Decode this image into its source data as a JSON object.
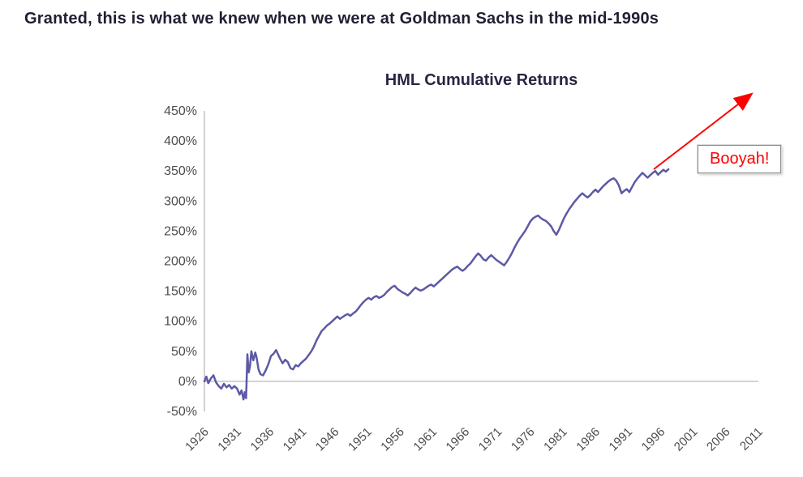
{
  "header": {
    "title": "Granted, this is what we knew when we were at Goldman Sachs in the mid-1990s"
  },
  "chart_data": {
    "type": "line",
    "title": "HML Cumulative Returns",
    "xlabel": "",
    "ylabel": "",
    "xlim": [
      1926,
      2011
    ],
    "ylim": [
      -50,
      450
    ],
    "grid": "zero-line-only",
    "legend": "none",
    "line_color": "#5d59a5",
    "axis_color": "#a6a6a6",
    "tick_label_color": "#4d4d4d",
    "annotation": {
      "text": "Booyah!",
      "color": "#ff0000"
    },
    "y_ticks": [
      {
        "value": 450,
        "label": "450%"
      },
      {
        "value": 400,
        "label": "400%"
      },
      {
        "value": 350,
        "label": "350%"
      },
      {
        "value": 300,
        "label": "300%"
      },
      {
        "value": 250,
        "label": "250%"
      },
      {
        "value": 200,
        "label": "200%"
      },
      {
        "value": 150,
        "label": "150%"
      },
      {
        "value": 100,
        "label": "100%"
      },
      {
        "value": 50,
        "label": "50%"
      },
      {
        "value": 0,
        "label": "0%"
      },
      {
        "value": -50,
        "label": "-50%"
      }
    ],
    "x_ticks": [
      {
        "value": 1926,
        "label": "1926"
      },
      {
        "value": 1931,
        "label": "1931"
      },
      {
        "value": 1936,
        "label": "1936"
      },
      {
        "value": 1941,
        "label": "1941"
      },
      {
        "value": 1946,
        "label": "1946"
      },
      {
        "value": 1951,
        "label": "1951"
      },
      {
        "value": 1956,
        "label": "1956"
      },
      {
        "value": 1961,
        "label": "1961"
      },
      {
        "value": 1966,
        "label": "1966"
      },
      {
        "value": 1971,
        "label": "1971"
      },
      {
        "value": 1976,
        "label": "1976"
      },
      {
        "value": 1981,
        "label": "1981"
      },
      {
        "value": 1986,
        "label": "1986"
      },
      {
        "value": 1991,
        "label": "1991"
      },
      {
        "value": 1996,
        "label": "1996"
      },
      {
        "value": 2001,
        "label": "2001"
      },
      {
        "value": 2006,
        "label": "2006"
      },
      {
        "value": 2011,
        "label": "2011"
      }
    ],
    "series": [
      {
        "name": "HML cumulative return (%)",
        "points": [
          [
            1926,
            0
          ],
          [
            1926.3,
            8
          ],
          [
            1926.6,
            -3
          ],
          [
            1927,
            5
          ],
          [
            1927.4,
            10
          ],
          [
            1927.8,
            -2
          ],
          [
            1928.2,
            -8
          ],
          [
            1928.6,
            -12
          ],
          [
            1929,
            -4
          ],
          [
            1929.4,
            -10
          ],
          [
            1929.8,
            -6
          ],
          [
            1930.2,
            -12
          ],
          [
            1930.6,
            -8
          ],
          [
            1931,
            -12
          ],
          [
            1931.4,
            -22
          ],
          [
            1931.7,
            -15
          ],
          [
            1932,
            -30
          ],
          [
            1932.2,
            -18
          ],
          [
            1932.4,
            -28
          ],
          [
            1932.6,
            45
          ],
          [
            1932.8,
            15
          ],
          [
            1933,
            25
          ],
          [
            1933.2,
            50
          ],
          [
            1933.5,
            35
          ],
          [
            1933.8,
            48
          ],
          [
            1934,
            40
          ],
          [
            1934.3,
            20
          ],
          [
            1934.6,
            12
          ],
          [
            1935,
            10
          ],
          [
            1935.4,
            18
          ],
          [
            1935.8,
            28
          ],
          [
            1936.2,
            42
          ],
          [
            1936.6,
            46
          ],
          [
            1937,
            52
          ],
          [
            1937.3,
            45
          ],
          [
            1937.6,
            38
          ],
          [
            1938,
            30
          ],
          [
            1938.4,
            36
          ],
          [
            1938.8,
            32
          ],
          [
            1939.2,
            22
          ],
          [
            1939.6,
            20
          ],
          [
            1940,
            27
          ],
          [
            1940.4,
            25
          ],
          [
            1940.8,
            30
          ],
          [
            1941.2,
            34
          ],
          [
            1941.6,
            38
          ],
          [
            1942,
            44
          ],
          [
            1942.4,
            50
          ],
          [
            1942.8,
            58
          ],
          [
            1943.2,
            68
          ],
          [
            1943.6,
            76
          ],
          [
            1944,
            84
          ],
          [
            1944.4,
            88
          ],
          [
            1944.8,
            93
          ],
          [
            1945.2,
            96
          ],
          [
            1945.6,
            100
          ],
          [
            1946,
            104
          ],
          [
            1946.4,
            108
          ],
          [
            1946.8,
            104
          ],
          [
            1947.2,
            107
          ],
          [
            1947.6,
            110
          ],
          [
            1948,
            112
          ],
          [
            1948.4,
            109
          ],
          [
            1948.8,
            113
          ],
          [
            1949.2,
            116
          ],
          [
            1949.6,
            121
          ],
          [
            1950,
            127
          ],
          [
            1950.4,
            132
          ],
          [
            1950.8,
            136
          ],
          [
            1951.2,
            139
          ],
          [
            1951.6,
            136
          ],
          [
            1952,
            140
          ],
          [
            1952.4,
            142
          ],
          [
            1952.8,
            139
          ],
          [
            1953.2,
            141
          ],
          [
            1953.6,
            144
          ],
          [
            1954,
            149
          ],
          [
            1954.4,
            153
          ],
          [
            1954.8,
            157
          ],
          [
            1955.2,
            159
          ],
          [
            1955.6,
            154
          ],
          [
            1956,
            151
          ],
          [
            1956.4,
            148
          ],
          [
            1956.8,
            146
          ],
          [
            1957.2,
            143
          ],
          [
            1957.6,
            147
          ],
          [
            1958,
            152
          ],
          [
            1958.4,
            156
          ],
          [
            1958.8,
            153
          ],
          [
            1959.2,
            151
          ],
          [
            1959.6,
            153
          ],
          [
            1960,
            156
          ],
          [
            1960.4,
            159
          ],
          [
            1960.8,
            161
          ],
          [
            1961.2,
            158
          ],
          [
            1961.6,
            162
          ],
          [
            1962,
            166
          ],
          [
            1962.4,
            170
          ],
          [
            1962.8,
            174
          ],
          [
            1963.2,
            178
          ],
          [
            1963.6,
            182
          ],
          [
            1964,
            186
          ],
          [
            1964.4,
            189
          ],
          [
            1964.8,
            191
          ],
          [
            1965.2,
            187
          ],
          [
            1965.6,
            184
          ],
          [
            1966,
            187
          ],
          [
            1966.4,
            192
          ],
          [
            1966.8,
            196
          ],
          [
            1967.2,
            202
          ],
          [
            1967.6,
            208
          ],
          [
            1968,
            213
          ],
          [
            1968.4,
            209
          ],
          [
            1968.8,
            203
          ],
          [
            1969.2,
            201
          ],
          [
            1969.6,
            206
          ],
          [
            1970,
            210
          ],
          [
            1970.4,
            206
          ],
          [
            1970.8,
            202
          ],
          [
            1971.2,
            199
          ],
          [
            1971.6,
            196
          ],
          [
            1972,
            193
          ],
          [
            1972.4,
            199
          ],
          [
            1972.8,
            206
          ],
          [
            1973.2,
            214
          ],
          [
            1973.6,
            223
          ],
          [
            1974,
            231
          ],
          [
            1974.4,
            238
          ],
          [
            1974.8,
            244
          ],
          [
            1975.2,
            250
          ],
          [
            1975.6,
            258
          ],
          [
            1976,
            266
          ],
          [
            1976.4,
            271
          ],
          [
            1976.8,
            274
          ],
          [
            1977.2,
            276
          ],
          [
            1977.6,
            272
          ],
          [
            1978,
            269
          ],
          [
            1978.4,
            267
          ],
          [
            1978.8,
            263
          ],
          [
            1979.2,
            258
          ],
          [
            1979.6,
            250
          ],
          [
            1980,
            244
          ],
          [
            1980.4,
            252
          ],
          [
            1980.8,
            262
          ],
          [
            1981.2,
            272
          ],
          [
            1981.6,
            280
          ],
          [
            1982,
            287
          ],
          [
            1982.4,
            293
          ],
          [
            1982.8,
            299
          ],
          [
            1983.2,
            304
          ],
          [
            1983.6,
            309
          ],
          [
            1984,
            313
          ],
          [
            1984.4,
            309
          ],
          [
            1984.8,
            306
          ],
          [
            1985.2,
            310
          ],
          [
            1985.6,
            315
          ],
          [
            1986,
            319
          ],
          [
            1986.4,
            315
          ],
          [
            1986.8,
            320
          ],
          [
            1987.2,
            325
          ],
          [
            1987.6,
            329
          ],
          [
            1988,
            333
          ],
          [
            1988.4,
            336
          ],
          [
            1988.8,
            338
          ],
          [
            1989.2,
            334
          ],
          [
            1989.6,
            326
          ],
          [
            1990,
            313
          ],
          [
            1990.4,
            317
          ],
          [
            1990.8,
            320
          ],
          [
            1991.2,
            315
          ],
          [
            1991.6,
            323
          ],
          [
            1992,
            331
          ],
          [
            1992.4,
            337
          ],
          [
            1992.8,
            342
          ],
          [
            1993.2,
            347
          ],
          [
            1993.6,
            343
          ],
          [
            1994,
            339
          ],
          [
            1994.4,
            343
          ],
          [
            1994.8,
            347
          ],
          [
            1995.2,
            350
          ],
          [
            1995.6,
            344
          ],
          [
            1996,
            348
          ],
          [
            1996.4,
            352
          ],
          [
            1996.8,
            349
          ],
          [
            1997.2,
            353
          ]
        ]
      }
    ]
  }
}
